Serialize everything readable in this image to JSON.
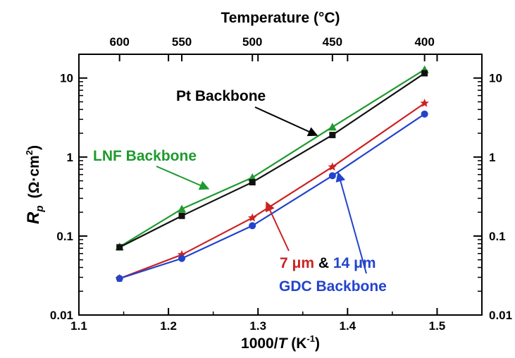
{
  "chart_data": {
    "type": "line",
    "xlabel": "1000/T (K⁻¹)",
    "xlabel_parts": {
      "prefix": "1000/",
      "var": "T",
      "unit": " (K",
      "unit_exp": "-1",
      "close": ")"
    },
    "ylabel_parts": {
      "var": "R",
      "sub": "p",
      "unit": "(Ω·cm",
      "exp": "2",
      "close": ")"
    },
    "top_axis_title": "Temperature (°C)",
    "xlim": [
      1.1,
      1.55
    ],
    "ylim": [
      0.01,
      20
    ],
    "yscale": "log",
    "x_ticks": [
      "1.1",
      "1.2",
      "1.3",
      "1.4",
      "1.5"
    ],
    "y_ticks": [
      "0.01",
      "0.1",
      "1",
      "10"
    ],
    "top_ticks": [
      "600",
      "550",
      "500",
      "450",
      "400"
    ],
    "top_tick_x": [
      1.1454,
      1.2149,
      1.2937,
      1.3831,
      1.486
    ],
    "series": [
      {
        "color": "#1e9a2e",
        "marker": "triangle",
        "x": [
          1.1454,
          1.2149,
          1.2937,
          1.3831,
          1.486
        ],
        "y": [
          0.073,
          0.22,
          0.55,
          2.4,
          12.8
        ]
      },
      {
        "color": "#111111",
        "marker": "square",
        "x": [
          1.1454,
          1.2149,
          1.2937,
          1.3831,
          1.486
        ],
        "y": [
          0.072,
          0.18,
          0.48,
          1.9,
          11.5
        ]
      },
      {
        "color": "#cc2222",
        "marker": "star",
        "x": [
          1.1454,
          1.2149,
          1.2937,
          1.3831,
          1.486
        ],
        "y": [
          0.029,
          0.058,
          0.17,
          0.75,
          4.8
        ]
      },
      {
        "color": "#2244cc",
        "marker": "circle",
        "x": [
          1.1454,
          1.2149,
          1.2937,
          1.3831,
          1.486
        ],
        "y": [
          0.029,
          0.052,
          0.135,
          0.58,
          3.5
        ]
      }
    ],
    "annotations": {
      "pt_backbone": "Pt Backbone",
      "lnf_backbone": "LNF Backbone",
      "thickness_7": "7 μm",
      "amp": " & ",
      "thickness_14": "14 μm",
      "gdc_backbone": "GDC Backbone"
    },
    "colors": {
      "green": "#1e9a2e",
      "black": "#000000",
      "red": "#cc2222",
      "blue": "#2244cc"
    }
  }
}
